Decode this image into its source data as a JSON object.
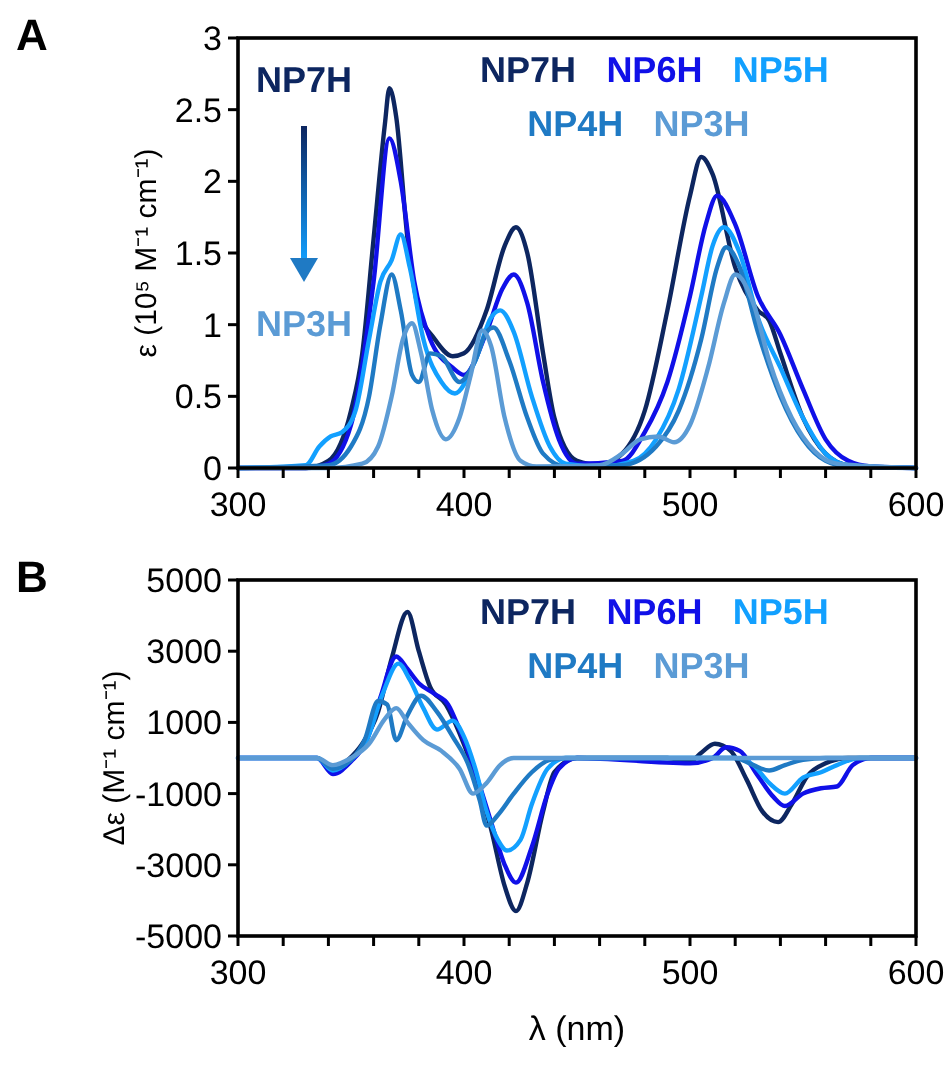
{
  "chart_data": [
    {
      "type": "line",
      "title": "A",
      "ylabel": "ε (10⁵ M⁻¹ cm⁻¹)",
      "xlim": [
        300,
        600
      ],
      "ylim": [
        0,
        3
      ],
      "xticks": [
        300,
        {
          "value": 320,
          "label": null
        },
        {
          "value": 340,
          "label": null
        },
        {
          "value": 360,
          "label": null
        },
        {
          "value": 380,
          "label": null
        },
        400,
        {
          "value": 420,
          "label": null
        },
        {
          "value": 440,
          "label": null
        },
        {
          "value": 460,
          "label": null
        },
        {
          "value": 480,
          "label": null
        },
        500,
        {
          "value": 520,
          "label": null
        },
        {
          "value": 540,
          "label": null
        },
        {
          "value": 560,
          "label": null
        },
        {
          "value": 580,
          "label": null
        },
        600
      ],
      "yticks": [
        0,
        0.5,
        1,
        1.5,
        2,
        2.5,
        3
      ],
      "legend": "top right",
      "marker": "none",
      "line_style": "solid",
      "annotations": [
        "NP7H",
        "NP3H"
      ],
      "series": [
        {
          "name": "NP7H",
          "color": "#0d2660",
          "x": [
            300,
            330,
            340,
            350,
            355,
            360,
            365,
            367,
            370,
            375,
            380,
            387,
            395,
            400,
            410,
            418,
            423,
            428,
            435,
            440,
            450,
            460,
            470,
            480,
            490,
            500,
            505,
            510,
            520,
            530,
            535,
            540,
            550,
            560,
            570,
            600
          ],
          "values": [
            0,
            0,
            0.05,
            0.4,
            0.8,
            1.6,
            2.4,
            2.65,
            2.45,
            1.6,
            1.1,
            0.9,
            0.78,
            0.8,
            1.1,
            1.55,
            1.68,
            1.5,
            0.8,
            0.35,
            0.05,
            0.02,
            0.1,
            0.4,
            1.1,
            1.9,
            2.17,
            2.05,
            1.4,
            1.1,
            1.03,
            0.8,
            0.35,
            0.1,
            0.02,
            0
          ]
        },
        {
          "name": "NP6H",
          "color": "#1010e8",
          "x": [
            300,
            330,
            340,
            350,
            360,
            367,
            372,
            378,
            385,
            395,
            400,
            410,
            417,
            422,
            428,
            435,
            442,
            450,
            470,
            480,
            490,
            500,
            507,
            512,
            520,
            530,
            540,
            550,
            560,
            570,
            580,
            600
          ],
          "values": [
            0,
            0,
            0.03,
            0.3,
            1.3,
            2.3,
            2.0,
            1.3,
            0.9,
            0.7,
            0.65,
            0.95,
            1.25,
            1.35,
            1.15,
            0.6,
            0.2,
            0.03,
            0.05,
            0.25,
            0.6,
            1.2,
            1.7,
            1.9,
            1.7,
            1.2,
            0.93,
            0.55,
            0.2,
            0.05,
            0.01,
            0
          ]
        },
        {
          "name": "NP5H",
          "color": "#12a0ff",
          "x": [
            300,
            330,
            336,
            341,
            346,
            352,
            358,
            363,
            368,
            372,
            376,
            382,
            390,
            396,
            405,
            412,
            416,
            422,
            430,
            438,
            445,
            460,
            475,
            485,
            495,
            505,
            510,
            515,
            522,
            530,
            540,
            550,
            560,
            570,
            600
          ],
          "values": [
            0,
            0.02,
            0.15,
            0.22,
            0.25,
            0.4,
            0.9,
            1.3,
            1.45,
            1.63,
            1.4,
            0.9,
            0.6,
            0.52,
            0.75,
            1.05,
            1.1,
            0.95,
            0.5,
            0.15,
            0.03,
            0.01,
            0.05,
            0.2,
            0.55,
            1.2,
            1.55,
            1.68,
            1.5,
            1.05,
            0.7,
            0.35,
            0.1,
            0.02,
            0
          ]
        },
        {
          "name": "NP4H",
          "color": "#1f7ac4",
          "x": [
            300,
            340,
            350,
            358,
            363,
            368,
            372,
            377,
            380,
            385,
            390,
            398,
            405,
            410,
            413,
            420,
            428,
            435,
            445,
            470,
            485,
            495,
            505,
            512,
            516,
            522,
            530,
            540,
            550,
            560,
            570,
            600
          ],
          "values": [
            0,
            0.02,
            0.15,
            0.5,
            1.0,
            1.35,
            1.1,
            0.65,
            0.6,
            0.8,
            0.78,
            0.6,
            0.75,
            0.95,
            0.98,
            0.75,
            0.35,
            0.1,
            0.01,
            0.02,
            0.15,
            0.4,
            0.9,
            1.4,
            1.54,
            1.4,
            0.95,
            0.5,
            0.2,
            0.05,
            0.01,
            0
          ]
        },
        {
          "name": "NP3H",
          "color": "#5b9bd5",
          "x": [
            300,
            340,
            355,
            362,
            368,
            373,
            377,
            381,
            386,
            392,
            398,
            403,
            408,
            412,
            418,
            425,
            432,
            460,
            470,
            478,
            486,
            493,
            500,
            508,
            515,
            520,
            528,
            535,
            545,
            555,
            565,
            600
          ],
          "values": [
            0,
            0,
            0.03,
            0.15,
            0.5,
            0.9,
            1.01,
            0.8,
            0.4,
            0.2,
            0.35,
            0.65,
            0.96,
            0.85,
            0.35,
            0.05,
            0.01,
            0.02,
            0.1,
            0.2,
            0.22,
            0.18,
            0.3,
            0.7,
            1.15,
            1.35,
            1.15,
            0.75,
            0.35,
            0.12,
            0.03,
            0
          ]
        }
      ]
    },
    {
      "type": "line",
      "title": "B",
      "xlabel": "λ (nm)",
      "ylabel": "Δε (M⁻¹ cm⁻¹)",
      "xlim": [
        300,
        600
      ],
      "ylim": [
        -5000,
        5000
      ],
      "xticks": [
        300,
        {
          "value": 320,
          "label": null
        },
        {
          "value": 340,
          "label": null
        },
        {
          "value": 360,
          "label": null
        },
        {
          "value": 380,
          "label": null
        },
        400,
        {
          "value": 420,
          "label": null
        },
        {
          "value": 440,
          "label": null
        },
        {
          "value": 460,
          "label": null
        },
        {
          "value": 480,
          "label": null
        },
        500,
        {
          "value": 520,
          "label": null
        },
        {
          "value": 540,
          "label": null
        },
        {
          "value": 560,
          "label": null
        },
        {
          "value": 580,
          "label": null
        },
        600
      ],
      "yticks": [
        -5000,
        -3000,
        -1000,
        1000,
        3000,
        5000
      ],
      "legend": "top right",
      "marker": "none",
      "line_style": "solid",
      "series": [
        {
          "name": "NP7H",
          "color": "#0d2660",
          "x": [
            342,
            348,
            355,
            362,
            368,
            375,
            380,
            385,
            392,
            398,
            405,
            412,
            418,
            423,
            428,
            435,
            440,
            450,
            490,
            500,
            505,
            511,
            518,
            525,
            532,
            539,
            545,
            552,
            560,
            570,
            600
          ],
          "values": [
            -400,
            -100,
            400,
            1300,
            2800,
            4100,
            3000,
            2000,
            1500,
            700,
            -500,
            -2000,
            -3600,
            -4300,
            -3500,
            -1500,
            -400,
            0,
            0,
            -100,
            150,
            400,
            200,
            -600,
            -1500,
            -1800,
            -1300,
            -500,
            -150,
            0,
            0
          ]
        },
        {
          "name": "NP6H",
          "color": "#1010e8",
          "x": [
            300,
            335,
            342,
            350,
            357,
            363,
            370,
            375,
            380,
            387,
            393,
            398,
            405,
            412,
            418,
            423,
            430,
            437,
            442,
            450,
            500,
            510,
            516,
            522,
            530,
            537,
            542,
            550,
            558,
            565,
            572,
            580,
            600
          ],
          "values": [
            0,
            0,
            -450,
            -100,
            500,
            1700,
            2850,
            2500,
            2100,
            1800,
            1500,
            800,
            -400,
            -1800,
            -3000,
            -3500,
            -2500,
            -1000,
            -300,
            0,
            -150,
            0,
            300,
            200,
            -500,
            -1100,
            -1350,
            -1000,
            -850,
            -800,
            -200,
            0,
            0
          ]
        },
        {
          "name": "NP5H",
          "color": "#12a0ff",
          "x": [
            300,
            335,
            342,
            350,
            357,
            364,
            371,
            376,
            382,
            388,
            395,
            400,
            405,
            410,
            415,
            419,
            425,
            430,
            437,
            445,
            520,
            528,
            535,
            542,
            550,
            558,
            565,
            575,
            600
          ],
          "values": [
            0,
            0,
            -350,
            -50,
            500,
            1800,
            2650,
            2200,
            1400,
            800,
            1050,
            600,
            -300,
            -1500,
            -2300,
            -2600,
            -2300,
            -1300,
            -300,
            0,
            0,
            -200,
            -700,
            -1000,
            -550,
            -400,
            -200,
            0,
            0
          ]
        },
        {
          "name": "NP4H",
          "color": "#1f7ac4",
          "x": [
            300,
            335,
            342,
            350,
            356,
            362,
            366,
            370,
            375,
            381,
            388,
            395,
            402,
            407,
            410,
            415,
            422,
            430,
            438,
            445,
            520,
            528,
            535,
            542,
            550,
            560,
            600
          ],
          "values": [
            0,
            0,
            -300,
            -50,
            500,
            1600,
            1500,
            500,
            1200,
            1750,
            1300,
            600,
            -200,
            -1200,
            -1900,
            -1600,
            -1000,
            -400,
            -50,
            0,
            0,
            -200,
            -350,
            -200,
            -50,
            0,
            0
          ]
        },
        {
          "name": "NP3H",
          "color": "#5b9bd5",
          "x": [
            300,
            335,
            342,
            350,
            358,
            365,
            370,
            375,
            382,
            390,
            398,
            404,
            410,
            416,
            422,
            600
          ],
          "values": [
            0,
            0,
            -200,
            0,
            400,
            1100,
            1400,
            1000,
            500,
            200,
            -300,
            -1000,
            -700,
            -200,
            0,
            0
          ]
        }
      ]
    }
  ]
}
